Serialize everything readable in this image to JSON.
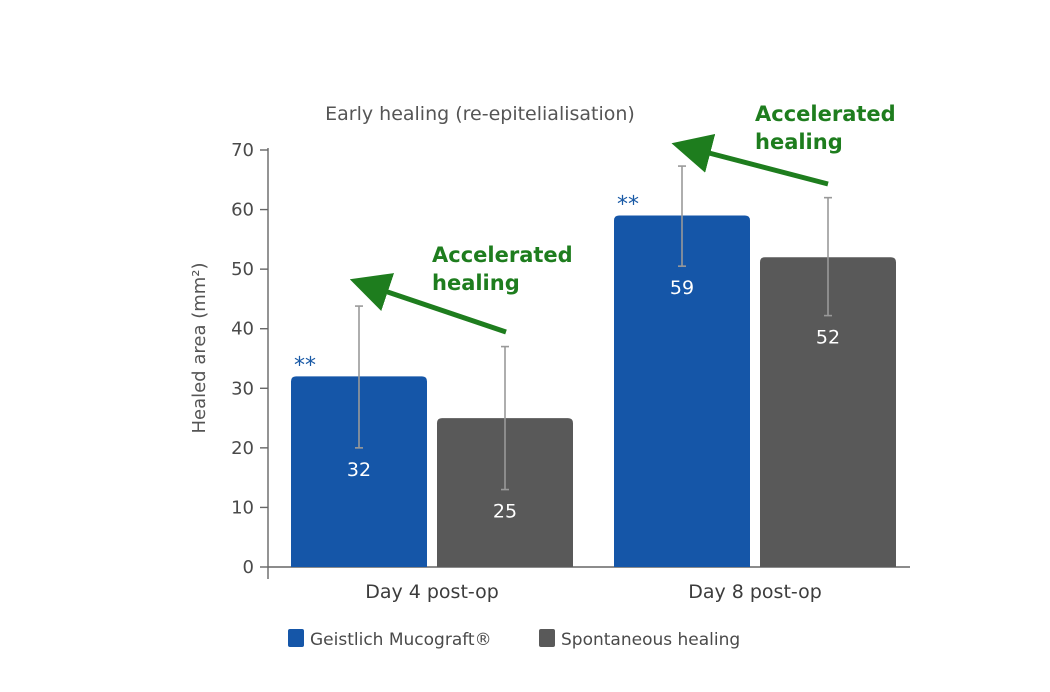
{
  "chart_data": {
    "type": "bar",
    "title": "Early healing (re-epitelialisation)",
    "ylabel": "Healed area (mm²)",
    "xlabel": "",
    "ylim": [
      0,
      70
    ],
    "yticks": [
      0,
      10,
      20,
      30,
      40,
      50,
      60,
      70
    ],
    "grid": false,
    "legend_position": "bottom",
    "categories": [
      "Day 4 post-op",
      "Day 8 post-op"
    ],
    "series": [
      {
        "name": "Geistlich Mucograft®",
        "color": "#1556a8",
        "values": [
          32,
          59
        ],
        "value_labels": [
          "32",
          "59"
        ],
        "error_low": [
          20,
          50.5
        ],
        "error_high": [
          43.8,
          67.3
        ]
      },
      {
        "name": "Spontaneous healing",
        "color": "#595959",
        "values": [
          25,
          52
        ],
        "value_labels": [
          "25",
          "52"
        ],
        "error_low": [
          13,
          42.2
        ],
        "error_high": [
          37,
          62
        ]
      }
    ],
    "significance_marks": [
      "**",
      "**"
    ],
    "annotations": [
      {
        "text_line1": "Accelerated",
        "text_line2": "healing",
        "category": "Day 4 post-op",
        "color": "#1e7d1e"
      },
      {
        "text_line1": "Accelerated",
        "text_line2": "healing",
        "category": "Day 8 post-op",
        "color": "#1e7d1e"
      }
    ]
  }
}
